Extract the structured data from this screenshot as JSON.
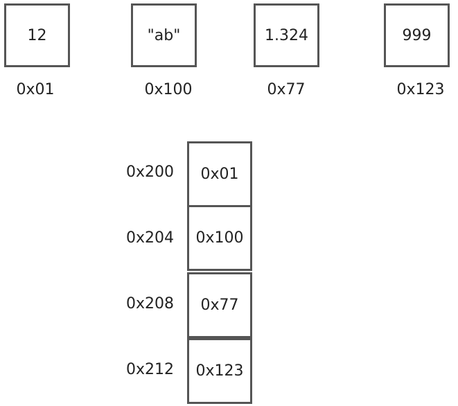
{
  "values": [
    {
      "value": "12",
      "address": "0x01"
    },
    {
      "value": "\"ab\"",
      "address": "0x100"
    },
    {
      "value": "1.324",
      "address": "0x77"
    },
    {
      "value": "999",
      "address": "0x123"
    }
  ],
  "array": [
    {
      "address": "0x200",
      "pointer": "0x01"
    },
    {
      "address": "0x204",
      "pointer": "0x100"
    },
    {
      "address": "0x208",
      "pointer": "0x77"
    },
    {
      "address": "0x212",
      "pointer": "0x123"
    }
  ],
  "colors": {
    "border": "#555555",
    "text": "#222222",
    "background": "#ffffff"
  }
}
